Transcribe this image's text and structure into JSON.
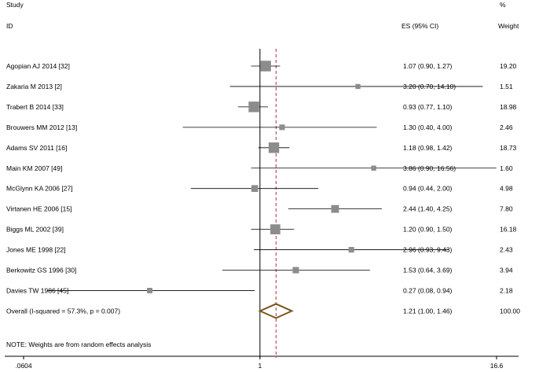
{
  "header": {
    "study_line1": "Study",
    "study_line2": "ID",
    "es_header": "ES (95% CI)",
    "pct": "%",
    "weight_header": "Weight"
  },
  "note": "NOTE: Weights are from random effects analysis",
  "chart_data": {
    "type": "forest",
    "x_scale": "log",
    "xlim": [
      0.0604,
      16.6
    ],
    "x_ticks": [
      {
        "value": 0.0604,
        "label": ".0604"
      },
      {
        "value": 1,
        "label": "1"
      },
      {
        "value": 16.6,
        "label": "16.6"
      }
    ],
    "null_line": 1,
    "overall_line": 1.21,
    "studies": [
      {
        "label": "Agopian AJ 2014  [32]",
        "es": 1.07,
        "lo": 0.9,
        "hi": 1.27,
        "es_text": "1.07 (0.90, 1.27)",
        "weight": 19.2,
        "weight_text": "19.20"
      },
      {
        "label": "Zakaria M 2013  [2]",
        "es": 3.2,
        "lo": 0.7,
        "hi": 14.1,
        "es_text": "3.20 (0.70, 14.10)",
        "weight": 1.51,
        "weight_text": "1.51"
      },
      {
        "label": "Trabert B 2014  [33]",
        "es": 0.93,
        "lo": 0.77,
        "hi": 1.1,
        "es_text": "0.93 (0.77, 1.10)",
        "weight": 18.98,
        "weight_text": "18.98"
      },
      {
        "label": "Brouwers MM 2012  [13]",
        "es": 1.3,
        "lo": 0.4,
        "hi": 4.0,
        "es_text": "1.30 (0.40, 4.00)",
        "weight": 2.46,
        "weight_text": "2.46"
      },
      {
        "label": "Adams SV 2011  [16]",
        "es": 1.18,
        "lo": 0.98,
        "hi": 1.42,
        "es_text": "1.18 (0.98, 1.42)",
        "weight": 18.73,
        "weight_text": "18.73"
      },
      {
        "label": "Main KM 2007  [49]",
        "es": 3.86,
        "lo": 0.9,
        "hi": 16.56,
        "es_text": "3.86 (0.90, 16.56)",
        "weight": 1.6,
        "weight_text": "1.60"
      },
      {
        "label": "McGlynn KA 2006  [27]",
        "es": 0.94,
        "lo": 0.44,
        "hi": 2.0,
        "es_text": "0.94 (0.44, 2.00)",
        "weight": 4.98,
        "weight_text": "4.98"
      },
      {
        "label": "Virtanen HE 2006  [15]",
        "es": 2.44,
        "lo": 1.4,
        "hi": 4.25,
        "es_text": "2.44 (1.40, 4.25)",
        "weight": 7.8,
        "weight_text": "7.80"
      },
      {
        "label": "Biggs ML 2002  [39]",
        "es": 1.2,
        "lo": 0.9,
        "hi": 1.5,
        "es_text": "1.20 (0.90, 1.50)",
        "weight": 16.18,
        "weight_text": "16.18"
      },
      {
        "label": "Jones ME 1998  [22]",
        "es": 2.96,
        "lo": 0.93,
        "hi": 9.43,
        "es_text": "2.96 (0.93, 9.43)",
        "weight": 2.43,
        "weight_text": "2.43"
      },
      {
        "label": "Berkowitz GS 1996  [30]",
        "es": 1.53,
        "lo": 0.64,
        "hi": 3.69,
        "es_text": "1.53 (0.64, 3.69)",
        "weight": 3.94,
        "weight_text": "3.94"
      },
      {
        "label": "Davies TW 1986  [45]",
        "es": 0.27,
        "lo": 0.08,
        "hi": 0.94,
        "es_text": "0.27 (0.08, 0.94)",
        "weight": 2.18,
        "weight_text": "2.18"
      }
    ],
    "overall": {
      "label": "Overall  (I-squared = 57.3%, p = 0.007)",
      "es": 1.21,
      "lo": 1.0,
      "hi": 1.46,
      "es_text": "1.21 (1.00, 1.46)",
      "weight": 100.0,
      "weight_text": "100.00"
    }
  }
}
